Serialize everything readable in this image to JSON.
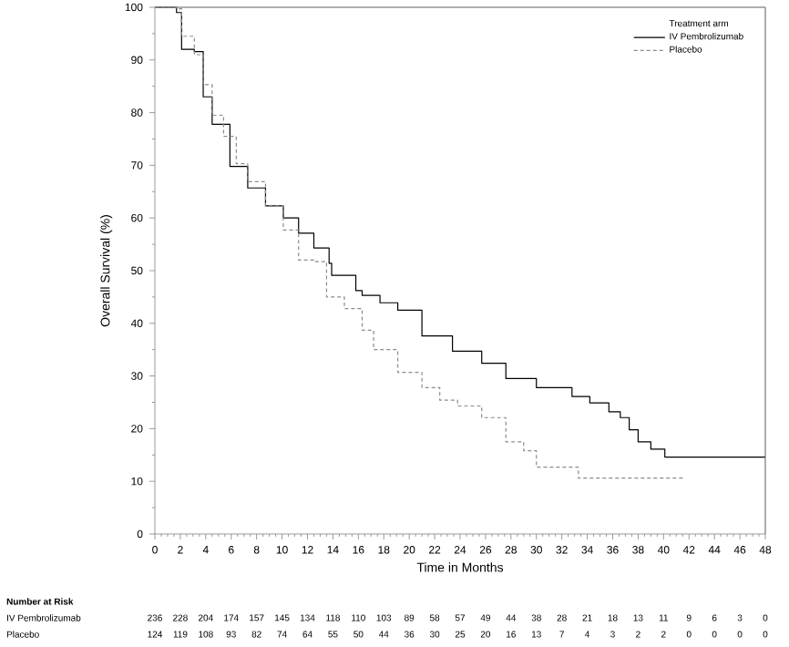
{
  "chart_data": {
    "type": "step",
    "xlabel": "Time in Months",
    "ylabel": "Overall Survival (%)",
    "legend_title": "Treatment arm",
    "xlim": [
      0,
      48
    ],
    "xticks": [
      0,
      2,
      4,
      6,
      8,
      10,
      12,
      14,
      16,
      18,
      20,
      22,
      24,
      26,
      28,
      30,
      32,
      34,
      36,
      38,
      40,
      42,
      44,
      46,
      48
    ],
    "ylim": [
      0,
      100
    ],
    "yticks": [
      0,
      10,
      20,
      30,
      40,
      50,
      60,
      70,
      80,
      90,
      100
    ],
    "grid": false,
    "legend": "top right",
    "series": [
      {
        "name": "IV Pembrolizumab",
        "color": "#000000",
        "line_style": "solid",
        "x": [
          0,
          1.7,
          2.1,
          3.1,
          3.8,
          4.5,
          5.9,
          7.3,
          8.7,
          10.1,
          11.3,
          12.5,
          13.7,
          13.9,
          15.8,
          16.3,
          17.7,
          19.1,
          21.0,
          23.4,
          25.7,
          27.6,
          30.0,
          32.8,
          34.2,
          35.7,
          36.6,
          37.3,
          38.0,
          39.0,
          40.1,
          48
        ],
        "values": [
          100,
          99,
          92,
          91.6,
          83,
          77.8,
          69.8,
          65.7,
          62.3,
          60,
          57.1,
          54.3,
          51.4,
          49.1,
          46.2,
          45.3,
          43.9,
          42.5,
          37.6,
          34.7,
          32.4,
          29.5,
          27.8,
          26.1,
          24.9,
          23.2,
          22.1,
          19.8,
          17.5,
          16.1,
          14.6,
          14.6
        ]
      },
      {
        "name": "Placebo",
        "color": "#8c8c8c",
        "line_style": "dashed",
        "x": [
          0,
          1.7,
          2.1,
          3.1,
          3.8,
          4.5,
          5.4,
          6.4,
          7.3,
          8.7,
          10.1,
          11.3,
          12.5,
          13.5,
          14.9,
          16.3,
          17.2,
          19.1,
          21.0,
          22.4,
          23.8,
          25.7,
          27.6,
          29.0,
          30.0,
          33.3,
          41.5
        ],
        "values": [
          100,
          99.7,
          94.5,
          91,
          85.3,
          79.5,
          75.5,
          70.3,
          66.9,
          62.3,
          57.7,
          52,
          51.7,
          45,
          42.8,
          38.7,
          35,
          30.7,
          27.8,
          25.4,
          24.3,
          22.1,
          17.5,
          15.8,
          12.7,
          10.6,
          10.6
        ]
      }
    ],
    "annotations": [
      "Number at Risk",
      "IV Pembrolizumab",
      "236 228 204 174 157 145 134 118 110 103 89 58 57 49 44 38 28 21 18 13 11 9 6 3 0",
      "Placebo",
      "124 119 108 93 82 74 64 55 50 44 36 30 25 20 16 13 7 4 3 2 2 0 0 0 0"
    ]
  }
}
